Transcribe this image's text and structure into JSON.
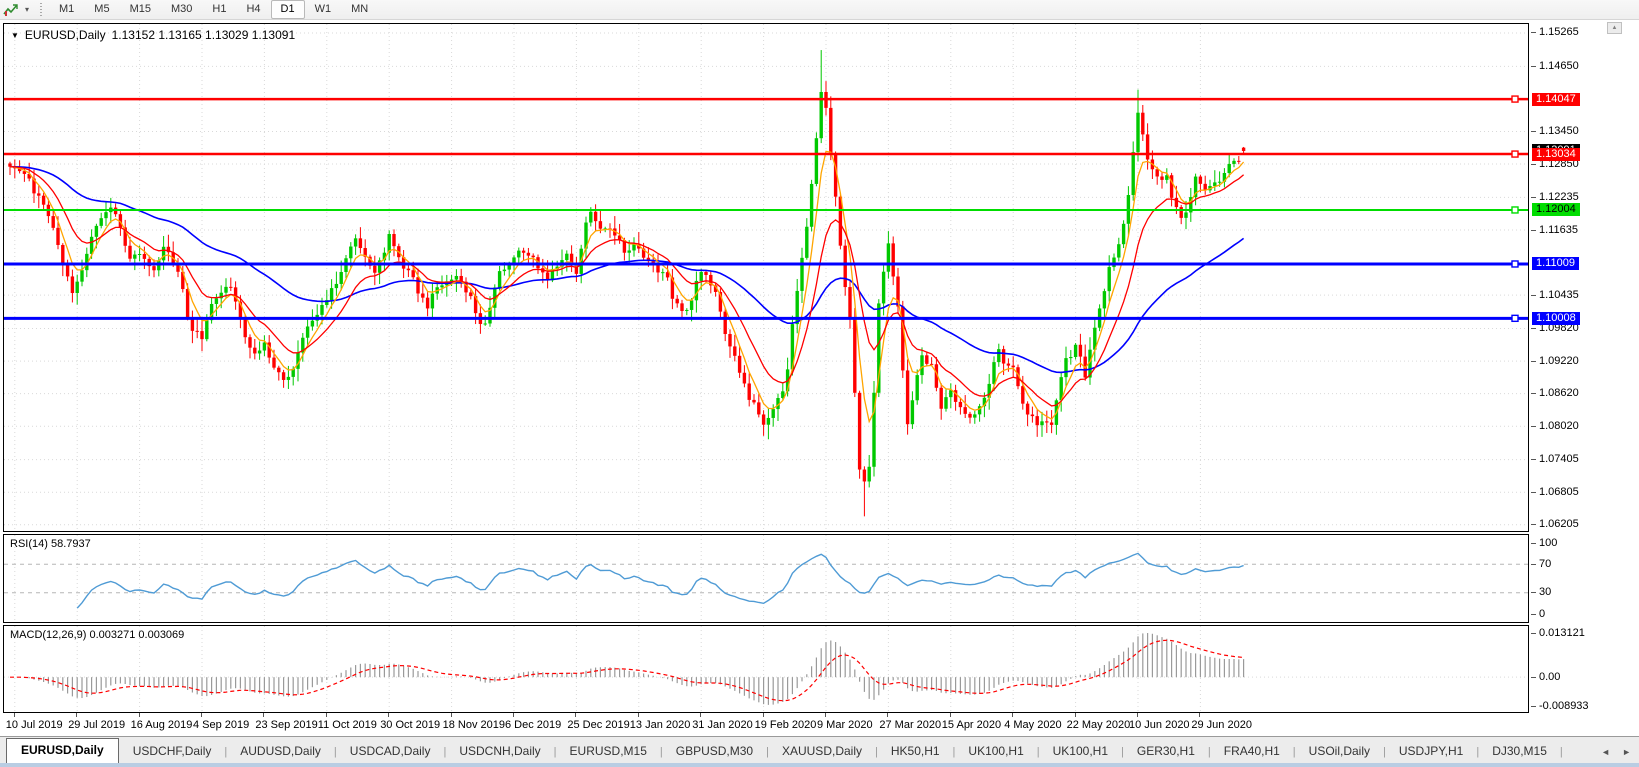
{
  "icons": {
    "symbol_dropdown": "▼",
    "toolbar_caret": "▾",
    "scroll_up": "▲",
    "tab_scroll_left": "◄",
    "tab_scroll_right": "►",
    "tab_separator": "|"
  },
  "toolbar": {
    "timeframes": [
      "M1",
      "M5",
      "M15",
      "M30",
      "H1",
      "H4",
      "D1",
      "W1",
      "MN"
    ],
    "active_timeframe": "D1"
  },
  "chart": {
    "title_symbol": "EURUSD,Daily",
    "ohlc_text": "1.13152 1.13165 1.13029 1.13091",
    "price_axis_ticks": [
      "1.15265",
      "1.14650",
      "1.13450",
      "1.12850",
      "1.12235",
      "1.11635",
      "1.10435",
      "1.09820",
      "1.09220",
      "1.08620",
      "1.08020",
      "1.07405",
      "1.06805",
      "1.06205"
    ],
    "current_price_badge": {
      "label": "1.13091",
      "value": 1.13091,
      "bg": "#000000",
      "fg": "#ffffff"
    },
    "hlines": [
      {
        "label": "1.14047",
        "value": 1.14047,
        "color": "#ff0000",
        "text": "#ffffff",
        "thickness": 2.5
      },
      {
        "label": "1.13034",
        "value": 1.13034,
        "color": "#ff0000",
        "text": "#ffffff",
        "thickness": 2.5
      },
      {
        "label": "1.12004",
        "value": 1.12004,
        "color": "#00dd00",
        "text": "#000000",
        "thickness": 2
      },
      {
        "label": "1.11009",
        "value": 1.11009,
        "color": "#0000ff",
        "text": "#ffffff",
        "thickness": 3
      },
      {
        "label": "1.10008",
        "value": 1.10008,
        "color": "#0000ff",
        "text": "#ffffff",
        "thickness": 3
      }
    ],
    "colors": {
      "up": "#00c800",
      "down": "#ff0000",
      "ma_fast": "#ffa500",
      "ma_mid": "#ff0000",
      "ma_slow": "#0000ff",
      "grid": "#d9d9d9",
      "level_dash": "#b5b5b5",
      "rsi_line": "#4f9bd5",
      "macd_hist": "#9a9a9a",
      "macd_signal": "#ff0000"
    }
  },
  "rsi": {
    "label": "RSI(14) 58.7937",
    "axis": [
      {
        "label": "100",
        "value": 100
      },
      {
        "label": "70",
        "value": 70
      },
      {
        "label": "30",
        "value": 30
      },
      {
        "label": "0",
        "value": 0
      }
    ],
    "levels": [
      70,
      30
    ]
  },
  "macd": {
    "label": "MACD(12,26,9) 0.003271 0.003069",
    "axis": [
      {
        "label": "0.013121",
        "value": 0.013121
      },
      {
        "label": "0.00",
        "value": 0.0
      },
      {
        "label": "-0.008933",
        "value": -0.008933
      }
    ]
  },
  "time_axis": [
    "10 Jul 2019",
    "29 Jul 2019",
    "16 Aug 2019",
    "4 Sep 2019",
    "23 Sep 2019",
    "11 Oct 2019",
    "30 Oct 2019",
    "18 Nov 2019",
    "6 Dec 2019",
    "25 Dec 2019",
    "13 Jan 2020",
    "31 Jan 2020",
    "19 Feb 2020",
    "9 Mar 2020",
    "27 Mar 2020",
    "15 Apr 2020",
    "4 May 2020",
    "22 May 2020",
    "10 Jun 2020",
    "29 Jun 2020"
  ],
  "tabs": {
    "items": [
      "EURUSD,Daily",
      "USDCHF,Daily",
      "AUDUSD,Daily",
      "USDCAD,Daily",
      "USDCNH,Daily",
      "EURUSD,M15",
      "GBPUSD,M30",
      "XAUUSD,Daily",
      "HK50,H1",
      "UK100,H1",
      "UK100,H1",
      "GER30,H1",
      "FRA40,H1",
      "USOil,Daily",
      "USDJPY,H1",
      "DJ30,M15"
    ],
    "active_index": 0
  },
  "chart_data": {
    "type": "candlestick",
    "symbol": "EURUSD",
    "timeframe": "Daily",
    "current_ohlc": {
      "open": 1.13152,
      "high": 1.13165,
      "low": 1.13029,
      "close": 1.13091
    },
    "y_axis": {
      "ticks": [
        1.15265,
        1.1465,
        1.1345,
        1.1285,
        1.12235,
        1.11635,
        1.10435,
        1.0982,
        1.0922,
        1.0862,
        1.0802,
        1.07405,
        1.06805,
        1.06205
      ],
      "top": 1.1543,
      "bottom": 1.0609
    },
    "candles_per_label": 13,
    "candle_count": 258,
    "horizontal_levels": [
      1.14047,
      1.13034,
      1.12004,
      1.11009,
      1.10008
    ],
    "close_path_anchors": [
      [
        0.0,
        1.128
      ],
      [
        0.2,
        1.1255
      ],
      [
        0.45,
        1.1215
      ],
      [
        0.6,
        1.117
      ],
      [
        0.8,
        1.109
      ],
      [
        0.95,
        1.1045
      ],
      [
        1.1,
        1.109
      ],
      [
        1.3,
        1.1175
      ],
      [
        1.5,
        1.1205
      ],
      [
        1.7,
        1.117
      ],
      [
        1.85,
        1.11
      ],
      [
        2.0,
        1.112
      ],
      [
        2.2,
        1.1085
      ],
      [
        2.4,
        1.1135
      ],
      [
        2.6,
        1.1095
      ],
      [
        2.8,
        1.099
      ],
      [
        3.0,
        1.0965
      ],
      [
        3.2,
        1.1035
      ],
      [
        3.4,
        1.107
      ],
      [
        3.6,
        1.1005
      ],
      [
        3.8,
        1.093
      ],
      [
        4.0,
        1.096
      ],
      [
        4.2,
        1.09
      ],
      [
        4.4,
        1.089
      ],
      [
        4.6,
        1.097
      ],
      [
        4.8,
        1.0995
      ],
      [
        5.0,
        1.104
      ],
      [
        5.2,
        1.1075
      ],
      [
        5.45,
        1.115
      ],
      [
        5.6,
        1.1125
      ],
      [
        5.8,
        1.1085
      ],
      [
        6.0,
        1.1155
      ],
      [
        6.2,
        1.1105
      ],
      [
        6.4,
        1.107
      ],
      [
        6.6,
        1.102
      ],
      [
        6.8,
        1.106
      ],
      [
        7.0,
        1.1075
      ],
      [
        7.2,
        1.1065
      ],
      [
        7.4,
        1.101
      ],
      [
        7.55,
        1.098
      ],
      [
        7.75,
        1.108
      ],
      [
        7.9,
        1.1105
      ],
      [
        8.1,
        1.113
      ],
      [
        8.3,
        1.112
      ],
      [
        8.5,
        1.1075
      ],
      [
        8.7,
        1.109
      ],
      [
        8.85,
        1.112
      ],
      [
        9.0,
        1.109
      ],
      [
        9.2,
        1.12
      ],
      [
        9.4,
        1.117
      ],
      [
        9.6,
        1.116
      ],
      [
        9.8,
        1.112
      ],
      [
        10.0,
        1.1135
      ],
      [
        10.2,
        1.1095
      ],
      [
        10.4,
        1.109
      ],
      [
        10.6,
        1.1025
      ],
      [
        10.8,
        1.102
      ],
      [
        11.0,
        1.1093
      ],
      [
        11.2,
        1.106
      ],
      [
        11.35,
        1.099
      ],
      [
        11.5,
        1.0945
      ],
      [
        11.7,
        1.087
      ],
      [
        11.9,
        1.0835
      ],
      [
        12.05,
        1.08
      ],
      [
        12.2,
        1.0855
      ],
      [
        12.35,
        1.088
      ],
      [
        12.5,
        1.1026
      ],
      [
        12.65,
        1.1134
      ],
      [
        12.8,
        1.1285
      ],
      [
        12.95,
        1.145
      ],
      [
        13.1,
        1.128
      ],
      [
        13.25,
        1.1105
      ],
      [
        13.4,
        1.0995
      ],
      [
        13.55,
        1.069
      ],
      [
        13.7,
        1.0725
      ],
      [
        13.85,
        1.103
      ],
      [
        14.0,
        1.114
      ],
      [
        14.15,
        1.103
      ],
      [
        14.3,
        1.08
      ],
      [
        14.5,
        1.093
      ],
      [
        14.7,
        1.091
      ],
      [
        14.85,
        1.084
      ],
      [
        15.0,
        1.086
      ],
      [
        15.2,
        1.082
      ],
      [
        15.4,
        1.0822
      ],
      [
        15.6,
        1.0875
      ],
      [
        15.75,
        1.0955
      ],
      [
        15.9,
        1.091
      ],
      [
        16.0,
        1.0905
      ],
      [
        16.2,
        1.0834
      ],
      [
        16.4,
        1.081
      ],
      [
        16.6,
        1.0805
      ],
      [
        16.8,
        1.0915
      ],
      [
        17.0,
        1.095
      ],
      [
        17.15,
        1.0897
      ],
      [
        17.3,
        1.0983
      ],
      [
        17.5,
        1.1076
      ],
      [
        17.7,
        1.1134
      ],
      [
        17.85,
        1.1234
      ],
      [
        18.0,
        1.1373
      ],
      [
        18.15,
        1.1301
      ],
      [
        18.3,
        1.1256
      ],
      [
        18.45,
        1.1264
      ],
      [
        18.6,
        1.1206
      ],
      [
        18.75,
        1.1177
      ],
      [
        18.9,
        1.126
      ],
      [
        19.05,
        1.1242
      ],
      [
        19.2,
        1.1251
      ],
      [
        19.35,
        1.1248
      ],
      [
        19.5,
        1.1308
      ],
      [
        19.6,
        1.1284
      ],
      [
        19.72,
        1.1309
      ]
    ],
    "extreme_wicks": [
      {
        "u": 12.95,
        "type": "high",
        "price": 1.1495
      },
      {
        "u": 13.62,
        "type": "low",
        "price": 1.0636
      },
      {
        "u": 18.0,
        "type": "high",
        "price": 1.1422
      },
      {
        "u": 12.05,
        "type": "low",
        "price": 1.0778
      },
      {
        "u": 4.35,
        "type": "low",
        "price": 1.0879
      }
    ],
    "moving_averages": [
      {
        "name": "fast",
        "period": 5,
        "color": "#ffa500"
      },
      {
        "name": "mid",
        "period": 13,
        "color": "#ff0000"
      },
      {
        "name": "slow",
        "period": 50,
        "color": "#0000ff"
      }
    ],
    "rsi": {
      "period": 14,
      "current": 58.7937,
      "range": [
        0,
        100
      ],
      "levels": [
        70,
        30
      ]
    },
    "macd": {
      "fast": 12,
      "slow": 26,
      "signal": 9,
      "current_main": 0.003271,
      "current_signal": 0.003069,
      "range": [
        -0.008933,
        0.013121
      ]
    }
  }
}
